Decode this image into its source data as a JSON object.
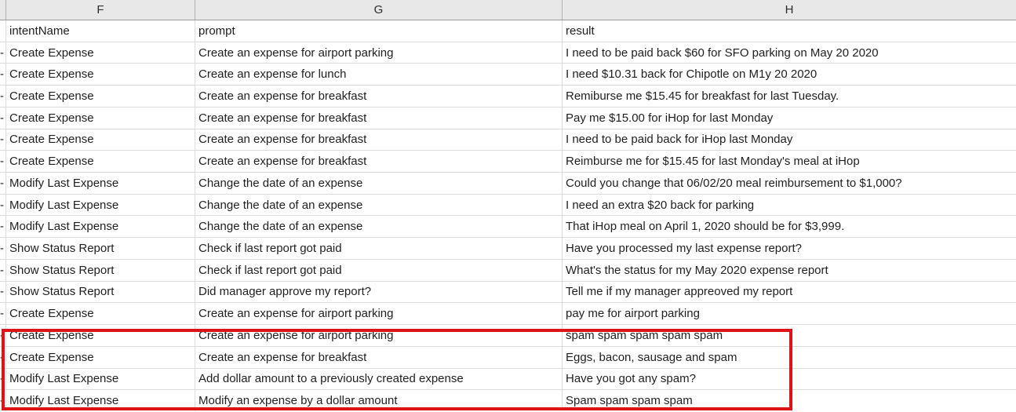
{
  "sheet": {
    "column_letters": {
      "e": "",
      "f": "F",
      "g": "G",
      "h": "H"
    },
    "field_labels": {
      "intent": "intentName",
      "prompt": "prompt",
      "result": "result"
    },
    "rows": [
      {
        "spill": "-",
        "intent": "Create Expense",
        "prompt": "Create an expense for airport parking",
        "result": "I need to be paid back $60 for SFO parking on May 20 2020"
      },
      {
        "spill": "-",
        "intent": "Create Expense",
        "prompt": "Create an expense for lunch",
        "result": "I need $10.31 back for Chipotle on M1y 20 2020"
      },
      {
        "spill": "-",
        "intent": "Create Expense",
        "prompt": "Create an expense for breakfast",
        "result": "Remiburse me $15.45 for breakfast for last Tuesday."
      },
      {
        "spill": "-",
        "intent": "Create Expense",
        "prompt": "Create an expense for breakfast",
        "result": "Pay me $15.00 for iHop for last Monday"
      },
      {
        "spill": "-",
        "intent": "Create Expense",
        "prompt": "Create an expense for breakfast",
        "result": "I need to be paid back for iHop last Monday"
      },
      {
        "spill": "-",
        "intent": "Create Expense",
        "prompt": "Create an expense for breakfast",
        "result": "Reimburse me for $15.45 for last Monday's meal at iHop"
      },
      {
        "spill": "-",
        "intent": "Modify Last Expense",
        "prompt": "Change the date of an expense",
        "result": "Could you change that 06/02/20 meal reimbursement to $1,000?"
      },
      {
        "spill": "-",
        "intent": "Modify Last Expense",
        "prompt": "Change the date of an expense",
        "result": "I need an extra $20 back for parking"
      },
      {
        "spill": "-",
        "intent": "Modify Last Expense",
        "prompt": "Change the date of an expense",
        "result": "That iHop meal on April 1, 2020 should be for $3,999."
      },
      {
        "spill": "-",
        "intent": "Show Status Report",
        "prompt": "Check if last report got paid",
        "result": "Have you processed my last expense report?"
      },
      {
        "spill": "-",
        "intent": "Show Status Report",
        "prompt": "Check if last report got paid",
        "result": "What's the status for my May 2020 expense report"
      },
      {
        "spill": "-",
        "intent": "Show Status Report",
        "prompt": "Did manager approve my report?",
        "result": "Tell me if my manager appreoved my report"
      },
      {
        "spill": "-",
        "intent": "Create Expense",
        "prompt": "Create an expense for airport parking",
        "result": "pay me for airport parking"
      },
      {
        "spill": "-",
        "intent": "Create Expense",
        "prompt": "Create an expense for airport parking",
        "result": "spam spam spam spam spam"
      },
      {
        "spill": "-",
        "intent": "Create Expense",
        "prompt": "Create an expense for breakfast",
        "result": "Eggs, bacon, sausage and spam"
      },
      {
        "spill": "-",
        "intent": "Modify Last Expense",
        "prompt": "Add dollar amount to a previously created expense",
        "result": "Have you got any spam?"
      },
      {
        "spill": "-",
        "intent": "Modify Last Expense",
        "prompt": "Modify an expense by a dollar amount",
        "result": "Spam spam spam spam"
      }
    ],
    "highlight": {
      "color": "#dc1418",
      "covers_rows_from": "spam spam spam spam spam",
      "covers_rows_to": "Spam spam spam spam"
    },
    "colors": {
      "header_bg": "#e8e8e8",
      "header_border": "#9b9b9b",
      "gridline": "#dcdcdc",
      "text": "#1f1f1f"
    }
  }
}
